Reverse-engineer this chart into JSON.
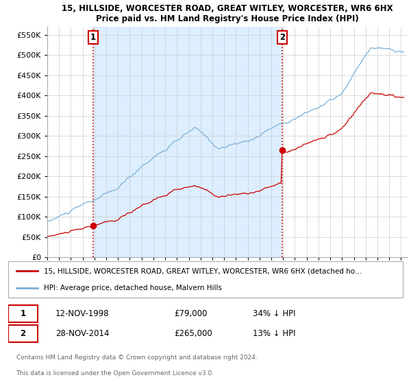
{
  "title1": "15, HILLSIDE, WORCESTER ROAD, GREAT WITLEY, WORCESTER, WR6 6HX",
  "title2": "Price paid vs. HM Land Registry's House Price Index (HPI)",
  "ylim": [
    0,
    570000
  ],
  "yticks": [
    0,
    50000,
    100000,
    150000,
    200000,
    250000,
    300000,
    350000,
    400000,
    450000,
    500000,
    550000
  ],
  "ytick_labels": [
    "£0",
    "£50K",
    "£100K",
    "£150K",
    "£200K",
    "£250K",
    "£300K",
    "£350K",
    "£400K",
    "£450K",
    "£500K",
    "£550K"
  ],
  "point1_date": "12-NOV-1998",
  "point1_price": 79000,
  "point1_x": 1998.87,
  "point2_date": "28-NOV-2014",
  "point2_price": 265000,
  "point2_x": 2014.91,
  "sale_color": "#cc0000",
  "hpi_color": "#7bafd4",
  "shade_color": "#ddeeff",
  "vline_color": "#cc0000",
  "legend_label1": "15, HILLSIDE, WORCESTER ROAD, GREAT WITLEY, WORCESTER, WR6 6HX (detached ho…",
  "legend_label2": "HPI: Average price, detached house, Malvern Hills",
  "annotation1": "1",
  "annotation2": "2",
  "footer1": "Contains HM Land Registry data © Crown copyright and database right 2024.",
  "footer2": "This data is licensed under the Open Government Licence v3.0.",
  "xmin": 1995.0,
  "xmax": 2025.5
}
